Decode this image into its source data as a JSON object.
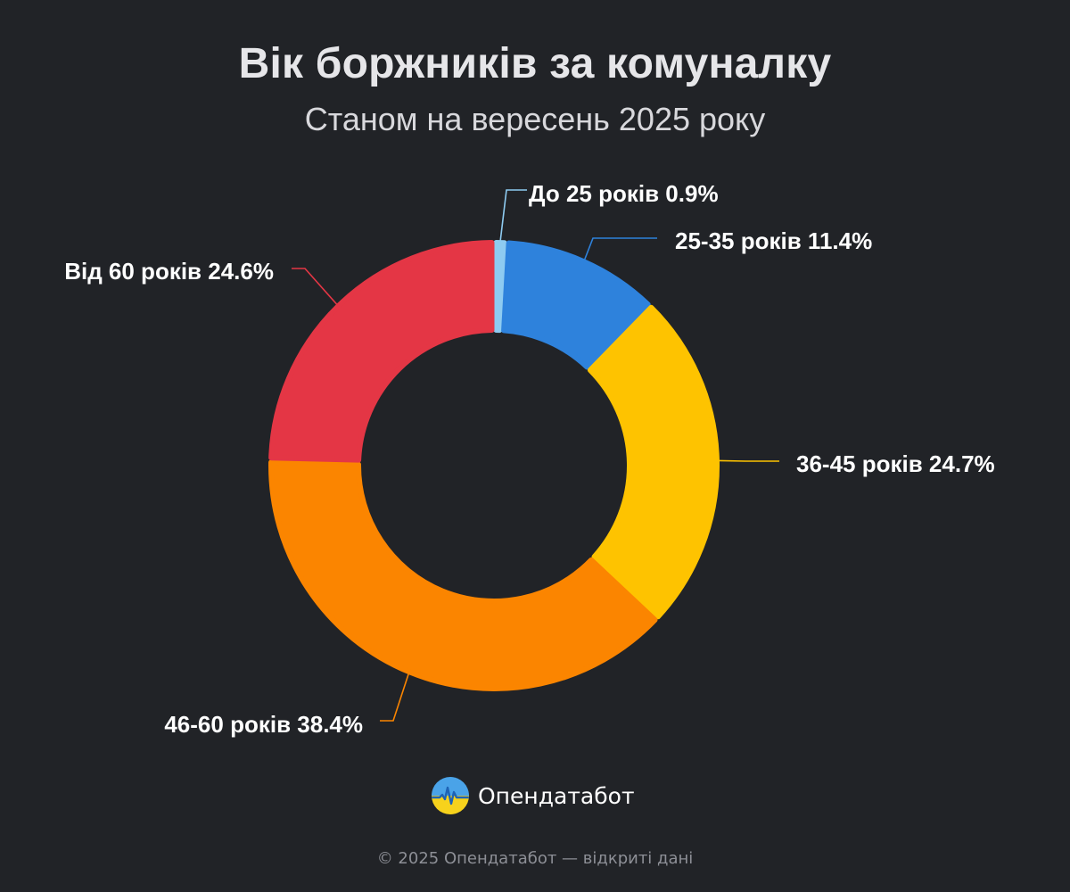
{
  "chart_data": {
    "type": "pie",
    "title": "Вік боржників за комуналку",
    "subtitle": "Станом на вересень 2025 року",
    "donut": true,
    "categories": [
      "До 25 років",
      "25-35 років",
      "36-45 років",
      "46-60 років",
      "Від 60 років"
    ],
    "values": [
      0.9,
      11.4,
      24.7,
      38.4,
      24.6
    ],
    "labels": [
      "До 25 років 0.9%",
      "25-35 років 11.4%",
      "36-45 років 24.7%",
      "46-60 років 38.4%",
      "Від 60 років 24.6%"
    ],
    "colors": [
      "#8ecbf1",
      "#2e82dc",
      "#fec300",
      "#fb8500",
      "#e43645"
    ],
    "unit": "%"
  },
  "brand": {
    "name": "Опендатабот",
    "logo_icon": "opendatabot-logo-icon"
  },
  "footer": {
    "text": "© 2025 Опендатабот — відкриті дані"
  }
}
